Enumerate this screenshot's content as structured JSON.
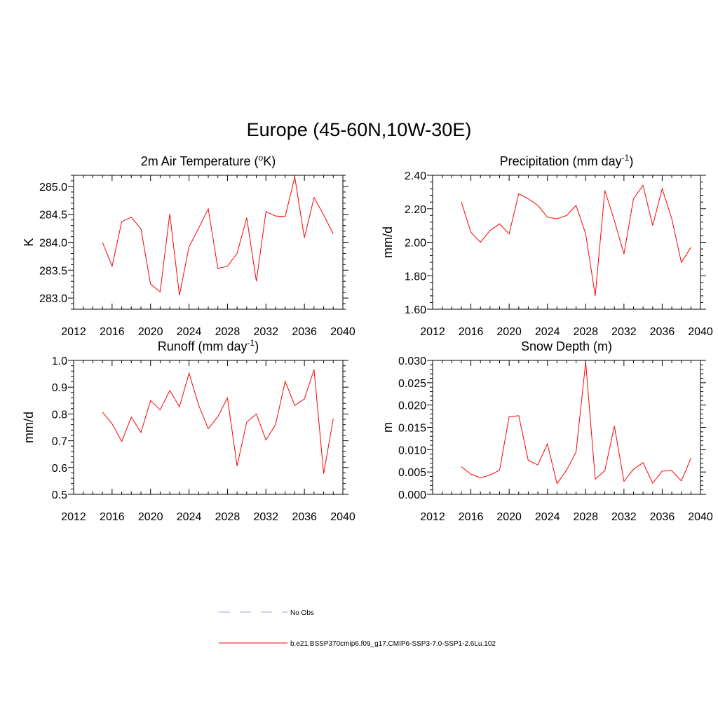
{
  "title": "Europe (45-60N,10W-30E)",
  "legend": {
    "entries": [
      {
        "label": "No Obs",
        "color": "#b4b4e6",
        "style": "dashed"
      },
      {
        "label": "b.e21.BSSP370cmip6.f09_g17.CMIP6-SSP3-7.0-SSP1-2.6Lu.102",
        "color": "#ff0000",
        "style": "solid"
      }
    ]
  },
  "chart_data": [
    {
      "type": "line",
      "title": "2m Air Temperature (oK)",
      "title_parts": {
        "pre": "2m Air Temperature (",
        "sup": "o",
        "post": "K)"
      },
      "xlabel": "",
      "ylabel": "K",
      "xlim": [
        2012,
        2040
      ],
      "ylim": [
        282.8,
        285.2
      ],
      "xticks": [
        2012,
        2016,
        2020,
        2024,
        2028,
        2032,
        2036,
        2040
      ],
      "yticks": [
        283.0,
        283.5,
        284.0,
        284.5,
        285.0
      ],
      "ytick_labels": [
        "283.0",
        "283.5",
        "284.0",
        "284.5",
        "285.0"
      ],
      "series": [
        {
          "color": "#ff0000",
          "x": [
            2015,
            2016,
            2017,
            2018,
            2019,
            2020,
            2021,
            2022,
            2023,
            2024,
            2025,
            2026,
            2027,
            2028,
            2029,
            2030,
            2031,
            2032,
            2033,
            2034,
            2035,
            2036,
            2037,
            2038,
            2039
          ],
          "y": [
            284.0,
            283.57,
            284.37,
            284.45,
            284.24,
            283.25,
            283.11,
            284.51,
            283.05,
            283.92,
            284.25,
            284.6,
            283.53,
            283.57,
            283.8,
            284.44,
            283.3,
            284.55,
            284.47,
            284.46,
            285.17,
            284.08,
            284.8,
            284.49,
            284.15
          ]
        }
      ]
    },
    {
      "type": "line",
      "title": "Precipitation (mm day-1)",
      "title_parts": {
        "pre": "Precipitation (mm day",
        "sup": "-1",
        "post": ")"
      },
      "xlabel": "",
      "ylabel": "mm/d",
      "xlim": [
        2012,
        2040
      ],
      "ylim": [
        1.6,
        2.4
      ],
      "xticks": [
        2012,
        2016,
        2020,
        2024,
        2028,
        2032,
        2036,
        2040
      ],
      "yticks": [
        1.6,
        1.8,
        2.0,
        2.2,
        2.4
      ],
      "ytick_labels": [
        "1.60",
        "1.80",
        "2.00",
        "2.20",
        "2.40"
      ],
      "series": [
        {
          "color": "#ff0000",
          "x": [
            2015,
            2016,
            2017,
            2018,
            2019,
            2020,
            2021,
            2022,
            2023,
            2024,
            2025,
            2026,
            2027,
            2028,
            2029,
            2030,
            2031,
            2032,
            2033,
            2034,
            2035,
            2036,
            2037,
            2038,
            2039
          ],
          "y": [
            2.24,
            2.06,
            2.0,
            2.07,
            2.11,
            2.05,
            2.29,
            2.26,
            2.22,
            2.15,
            2.14,
            2.16,
            2.22,
            2.05,
            1.68,
            2.31,
            2.13,
            1.93,
            2.26,
            2.34,
            2.1,
            2.32,
            2.14,
            1.88,
            1.97
          ]
        }
      ]
    },
    {
      "type": "line",
      "title": "Runoff (mm day-1)",
      "title_parts": {
        "pre": "Runoff (mm day",
        "sup": "-1",
        "post": ")"
      },
      "xlabel": "",
      "ylabel": "mm/d",
      "xlim": [
        2012,
        2040
      ],
      "ylim": [
        0.5,
        1.0
      ],
      "xticks": [
        2012,
        2016,
        2020,
        2024,
        2028,
        2032,
        2036,
        2040
      ],
      "yticks": [
        0.5,
        0.6,
        0.7,
        0.8,
        0.9,
        1.0
      ],
      "ytick_labels": [
        "0.5",
        "0.6",
        "0.7",
        "0.8",
        "0.9",
        "1.0"
      ],
      "series": [
        {
          "color": "#ff0000",
          "x": [
            2015,
            2016,
            2017,
            2018,
            2019,
            2020,
            2021,
            2022,
            2023,
            2024,
            2025,
            2026,
            2027,
            2028,
            2029,
            2030,
            2031,
            2032,
            2033,
            2034,
            2035,
            2036,
            2037,
            2038,
            2039
          ],
          "y": [
            0.807,
            0.763,
            0.697,
            0.788,
            0.731,
            0.85,
            0.815,
            0.888,
            0.827,
            0.952,
            0.833,
            0.745,
            0.79,
            0.86,
            0.606,
            0.77,
            0.8,
            0.703,
            0.76,
            0.922,
            0.832,
            0.856,
            0.966,
            0.577,
            0.783
          ]
        }
      ]
    },
    {
      "type": "line",
      "title": "Snow Depth (m)",
      "title_parts": {
        "pre": "Snow Depth (m)",
        "sup": "",
        "post": ""
      },
      "xlabel": "",
      "ylabel": "m",
      "xlim": [
        2012,
        2040
      ],
      "ylim": [
        0.0,
        0.03
      ],
      "xticks": [
        2012,
        2016,
        2020,
        2024,
        2028,
        2032,
        2036,
        2040
      ],
      "yticks": [
        0.0,
        0.005,
        0.01,
        0.015,
        0.02,
        0.025,
        0.03
      ],
      "ytick_labels": [
        "0.000",
        "0.005",
        "0.010",
        "0.015",
        "0.020",
        "0.025",
        "0.030"
      ],
      "series": [
        {
          "color": "#ff0000",
          "x": [
            2015,
            2016,
            2017,
            2018,
            2019,
            2020,
            2021,
            2022,
            2023,
            2024,
            2025,
            2026,
            2027,
            2028,
            2029,
            2030,
            2031,
            2032,
            2033,
            2034,
            2035,
            2036,
            2037,
            2038,
            2039
          ],
          "y": [
            0.0062,
            0.0045,
            0.0037,
            0.0043,
            0.0054,
            0.0174,
            0.0176,
            0.0076,
            0.0066,
            0.0113,
            0.0024,
            0.0054,
            0.0095,
            0.0296,
            0.0034,
            0.0053,
            0.0153,
            0.0029,
            0.0056,
            0.0071,
            0.0025,
            0.0052,
            0.0053,
            0.003,
            0.0081
          ]
        }
      ]
    }
  ]
}
